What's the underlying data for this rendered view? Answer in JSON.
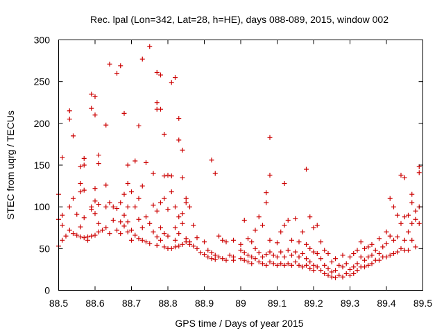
{
  "chart_data": {
    "type": "scatter",
    "title": "Rec. lpal (Lon=342, Lat=28, h=HE), days 088-089, 2015, window 002",
    "xlabel": "GPS time / Days of year 2015",
    "ylabel": "STEC from uqrg / TECUs",
    "xlim": [
      88.5,
      89.5
    ],
    "ylim": [
      0,
      300
    ],
    "xticks": [
      88.5,
      88.6,
      88.7,
      88.8,
      88.9,
      89.0,
      89.1,
      89.2,
      89.3,
      89.4,
      89.5
    ],
    "xtick_labels": [
      "88.5",
      "88.6",
      "88.7",
      "88.8",
      "88.9",
      "89",
      "89.1",
      "89.2",
      "89.3",
      "89.4",
      "89.5"
    ],
    "yticks": [
      0,
      50,
      100,
      150,
      200,
      250,
      300
    ],
    "ytick_labels": [
      "0",
      "50",
      "100",
      "150",
      "200",
      "250",
      "300"
    ],
    "grid": false,
    "legend": "none",
    "marker": "plus",
    "marker_color": "#cc0000",
    "series": [
      {
        "name": "",
        "points": [
          [
            88.5,
            115
          ],
          [
            88.5,
            85
          ],
          [
            88.5,
            53
          ],
          [
            88.51,
            159
          ],
          [
            88.51,
            90
          ],
          [
            88.51,
            78
          ],
          [
            88.51,
            60
          ],
          [
            88.52,
            65
          ],
          [
            88.53,
            215
          ],
          [
            88.53,
            205
          ],
          [
            88.53,
            100
          ],
          [
            88.53,
            72
          ],
          [
            88.54,
            185
          ],
          [
            88.54,
            110
          ],
          [
            88.54,
            68
          ],
          [
            88.55,
            91
          ],
          [
            88.55,
            66
          ],
          [
            88.56,
            148
          ],
          [
            88.56,
            128
          ],
          [
            88.56,
            118
          ],
          [
            88.56,
            76
          ],
          [
            88.56,
            64
          ],
          [
            88.57,
            158
          ],
          [
            88.57,
            150
          ],
          [
            88.57,
            120
          ],
          [
            88.57,
            87
          ],
          [
            88.57,
            63
          ],
          [
            88.58,
            64
          ],
          [
            88.58,
            60
          ],
          [
            88.59,
            235
          ],
          [
            88.59,
            218
          ],
          [
            88.59,
            100
          ],
          [
            88.59,
            97
          ],
          [
            88.59,
            65
          ],
          [
            88.6,
            232
          ],
          [
            88.6,
            210
          ],
          [
            88.6,
            122
          ],
          [
            88.6,
            107
          ],
          [
            88.6,
            92
          ],
          [
            88.6,
            66
          ],
          [
            88.61,
            162
          ],
          [
            88.61,
            152
          ],
          [
            88.61,
            103
          ],
          [
            88.61,
            80
          ],
          [
            88.61,
            70
          ],
          [
            88.62,
            72
          ],
          [
            88.63,
            198
          ],
          [
            88.63,
            126
          ],
          [
            88.63,
            100
          ],
          [
            88.63,
            75
          ],
          [
            88.64,
            271
          ],
          [
            88.64,
            105
          ],
          [
            88.64,
            68
          ],
          [
            88.65,
            100
          ],
          [
            88.65,
            84
          ],
          [
            88.66,
            260
          ],
          [
            88.66,
            98
          ],
          [
            88.66,
            72
          ],
          [
            88.67,
            269
          ],
          [
            88.67,
            105
          ],
          [
            88.67,
            82
          ],
          [
            88.67,
            68
          ],
          [
            88.68,
            212
          ],
          [
            88.68,
            115
          ],
          [
            88.68,
            90
          ],
          [
            88.68,
            77
          ],
          [
            88.69,
            150
          ],
          [
            88.69,
            128
          ],
          [
            88.69,
            100
          ],
          [
            88.69,
            82
          ],
          [
            88.69,
            70
          ],
          [
            88.7,
            118
          ],
          [
            88.7,
            72
          ],
          [
            88.7,
            60
          ],
          [
            88.71,
            155
          ],
          [
            88.71,
            100
          ],
          [
            88.71,
            66
          ],
          [
            88.72,
            197
          ],
          [
            88.72,
            110
          ],
          [
            88.72,
            85
          ],
          [
            88.72,
            62
          ],
          [
            88.73,
            277
          ],
          [
            88.73,
            125
          ],
          [
            88.73,
            75
          ],
          [
            88.73,
            60
          ],
          [
            88.74,
            153
          ],
          [
            88.74,
            88
          ],
          [
            88.74,
            58
          ],
          [
            88.75,
            292
          ],
          [
            88.75,
            80
          ],
          [
            88.75,
            56
          ],
          [
            88.76,
            140
          ],
          [
            88.76,
            102
          ],
          [
            88.76,
            70
          ],
          [
            88.77,
            261
          ],
          [
            88.77,
            225
          ],
          [
            88.77,
            217
          ],
          [
            88.77,
            95
          ],
          [
            88.77,
            64
          ],
          [
            88.77,
            54
          ],
          [
            88.78,
            258
          ],
          [
            88.78,
            217
          ],
          [
            88.78,
            105
          ],
          [
            88.78,
            75
          ],
          [
            88.78,
            60
          ],
          [
            88.79,
            187
          ],
          [
            88.79,
            137
          ],
          [
            88.79,
            110
          ],
          [
            88.79,
            68
          ],
          [
            88.79,
            52
          ],
          [
            88.8,
            138
          ],
          [
            88.8,
            97
          ],
          [
            88.8,
            65
          ],
          [
            88.8,
            50
          ],
          [
            88.81,
            249
          ],
          [
            88.81,
            137
          ],
          [
            88.81,
            118
          ],
          [
            88.81,
            50
          ],
          [
            88.82,
            255
          ],
          [
            88.82,
            100
          ],
          [
            88.82,
            75
          ],
          [
            88.82,
            60
          ],
          [
            88.82,
            52
          ],
          [
            88.83,
            206
          ],
          [
            88.83,
            180
          ],
          [
            88.83,
            88
          ],
          [
            88.83,
            68
          ],
          [
            88.83,
            53
          ],
          [
            88.84,
            168
          ],
          [
            88.84,
            135
          ],
          [
            88.84,
            92
          ],
          [
            88.84,
            80
          ],
          [
            88.84,
            55
          ],
          [
            88.85,
            110
          ],
          [
            88.85,
            105
          ],
          [
            88.85,
            62
          ],
          [
            88.85,
            58
          ],
          [
            88.86,
            100
          ],
          [
            88.86,
            58
          ],
          [
            88.86,
            55
          ],
          [
            88.87,
            78
          ],
          [
            88.87,
            53
          ],
          [
            88.88,
            63
          ],
          [
            88.88,
            50
          ],
          [
            88.89,
            45
          ],
          [
            88.9,
            58
          ],
          [
            88.9,
            43
          ],
          [
            88.91,
            48
          ],
          [
            88.91,
            40
          ],
          [
            88.92,
            156
          ],
          [
            88.92,
            45
          ],
          [
            88.92,
            38
          ],
          [
            88.93,
            140
          ],
          [
            88.93,
            42
          ],
          [
            88.93,
            37
          ],
          [
            88.94,
            65
          ],
          [
            88.94,
            40
          ],
          [
            88.95,
            60
          ],
          [
            88.95,
            38
          ],
          [
            88.96,
            58
          ],
          [
            88.96,
            36
          ],
          [
            88.97,
            42
          ],
          [
            88.98,
            60
          ],
          [
            88.98,
            40
          ],
          [
            88.98,
            36
          ],
          [
            89.0,
            55
          ],
          [
            89.0,
            48
          ],
          [
            89.0,
            38
          ],
          [
            89.01,
            84
          ],
          [
            89.01,
            45
          ],
          [
            89.01,
            36
          ],
          [
            89.02,
            62
          ],
          [
            89.02,
            42
          ],
          [
            89.02,
            34
          ],
          [
            89.03,
            58
          ],
          [
            89.03,
            40
          ],
          [
            89.03,
            32
          ],
          [
            89.04,
            72
          ],
          [
            89.04,
            50
          ],
          [
            89.04,
            38
          ],
          [
            89.05,
            88
          ],
          [
            89.05,
            45
          ],
          [
            89.05,
            34
          ],
          [
            89.06,
            78
          ],
          [
            89.06,
            40
          ],
          [
            89.06,
            32
          ],
          [
            89.07,
            117
          ],
          [
            89.07,
            105
          ],
          [
            89.07,
            43
          ],
          [
            89.07,
            30
          ],
          [
            89.08,
            183
          ],
          [
            89.08,
            138
          ],
          [
            89.08,
            60
          ],
          [
            89.08,
            46
          ],
          [
            89.08,
            34
          ],
          [
            89.09,
            42
          ],
          [
            89.09,
            32
          ],
          [
            89.1,
            57
          ],
          [
            89.1,
            40
          ],
          [
            89.1,
            30
          ],
          [
            89.11,
            70
          ],
          [
            89.11,
            46
          ],
          [
            89.11,
            32
          ],
          [
            89.12,
            128
          ],
          [
            89.12,
            78
          ],
          [
            89.12,
            40
          ],
          [
            89.12,
            30
          ],
          [
            89.13,
            84
          ],
          [
            89.13,
            48
          ],
          [
            89.13,
            32
          ],
          [
            89.14,
            60
          ],
          [
            89.14,
            42
          ],
          [
            89.14,
            30
          ],
          [
            89.15,
            86
          ],
          [
            89.15,
            46
          ],
          [
            89.15,
            34
          ],
          [
            89.16,
            58
          ],
          [
            89.16,
            40
          ],
          [
            89.16,
            30
          ],
          [
            89.17,
            70
          ],
          [
            89.17,
            44
          ],
          [
            89.17,
            28
          ],
          [
            89.18,
            145
          ],
          [
            89.18,
            55
          ],
          [
            89.18,
            38
          ],
          [
            89.18,
            30
          ],
          [
            89.19,
            88
          ],
          [
            89.19,
            50
          ],
          [
            89.19,
            34
          ],
          [
            89.19,
            26
          ],
          [
            89.2,
            75
          ],
          [
            89.2,
            46
          ],
          [
            89.2,
            30
          ],
          [
            89.2,
            24
          ],
          [
            89.21,
            78
          ],
          [
            89.21,
            44
          ],
          [
            89.21,
            28
          ],
          [
            89.22,
            58
          ],
          [
            89.22,
            38
          ],
          [
            89.22,
            24
          ],
          [
            89.23,
            48
          ],
          [
            89.23,
            30
          ],
          [
            89.23,
            20
          ],
          [
            89.24,
            44
          ],
          [
            89.24,
            26
          ],
          [
            89.24,
            18
          ],
          [
            89.25,
            34
          ],
          [
            89.25,
            22
          ],
          [
            89.25,
            16
          ],
          [
            89.26,
            38
          ],
          [
            89.26,
            24
          ],
          [
            89.26,
            15
          ],
          [
            89.27,
            30
          ],
          [
            89.27,
            18
          ],
          [
            89.28,
            42
          ],
          [
            89.28,
            28
          ],
          [
            89.28,
            16
          ],
          [
            89.29,
            32
          ],
          [
            89.29,
            20
          ],
          [
            89.3,
            40
          ],
          [
            89.3,
            25
          ],
          [
            89.3,
            18
          ],
          [
            89.31,
            44
          ],
          [
            89.31,
            28
          ],
          [
            89.31,
            20
          ],
          [
            89.32,
            48
          ],
          [
            89.32,
            32
          ],
          [
            89.32,
            24
          ],
          [
            89.33,
            58
          ],
          [
            89.33,
            40
          ],
          [
            89.33,
            28
          ],
          [
            89.34,
            50
          ],
          [
            89.34,
            36
          ],
          [
            89.34,
            28
          ],
          [
            89.35,
            52
          ],
          [
            89.35,
            40
          ],
          [
            89.35,
            30
          ],
          [
            89.36,
            55
          ],
          [
            89.36,
            42
          ],
          [
            89.36,
            32
          ],
          [
            89.37,
            48
          ],
          [
            89.37,
            36
          ],
          [
            89.38,
            62
          ],
          [
            89.38,
            44
          ],
          [
            89.38,
            36
          ],
          [
            89.39,
            52
          ],
          [
            89.39,
            40
          ],
          [
            89.4,
            70
          ],
          [
            89.4,
            56
          ],
          [
            89.4,
            40
          ],
          [
            89.41,
            110
          ],
          [
            89.41,
            65
          ],
          [
            89.41,
            42
          ],
          [
            89.42,
            100
          ],
          [
            89.42,
            60
          ],
          [
            89.42,
            44
          ],
          [
            89.43,
            90
          ],
          [
            89.43,
            64
          ],
          [
            89.43,
            46
          ],
          [
            89.44,
            138
          ],
          [
            89.44,
            80
          ],
          [
            89.44,
            50
          ],
          [
            89.45,
            135
          ],
          [
            89.45,
            88
          ],
          [
            89.45,
            60
          ],
          [
            89.45,
            48
          ],
          [
            89.46,
            90
          ],
          [
            89.46,
            70
          ],
          [
            89.46,
            48
          ],
          [
            89.47,
            115
          ],
          [
            89.47,
            105
          ],
          [
            89.47,
            80
          ],
          [
            89.47,
            60
          ],
          [
            89.48,
            95
          ],
          [
            89.48,
            85
          ],
          [
            89.48,
            52
          ],
          [
            89.49,
            148
          ],
          [
            89.49,
            141
          ],
          [
            89.49,
            100
          ],
          [
            89.49,
            80
          ]
        ]
      }
    ]
  }
}
